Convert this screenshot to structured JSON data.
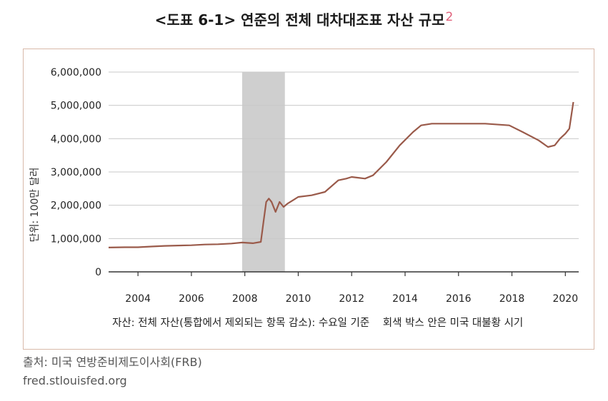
{
  "title": "<도표 6-1> 연준의 전체 대차대조표 자산 규모",
  "title_superscript": "2",
  "chart_data": {
    "type": "line",
    "ylabel": "단위: 100만 달러",
    "yticks": [
      "6,000,000",
      "5,000,000",
      "4,000,000",
      "3,000,000",
      "2,000,000",
      "1,000,000",
      "0"
    ],
    "ytick_values": [
      6000000,
      5000000,
      4000000,
      3000000,
      2000000,
      1000000,
      0
    ],
    "xticks": [
      "2004",
      "2006",
      "2008",
      "2010",
      "2012",
      "2014",
      "2016",
      "2018",
      "2020"
    ],
    "xtick_values": [
      2004,
      2006,
      2008,
      2010,
      2012,
      2014,
      2016,
      2018,
      2020
    ],
    "xlim": [
      2002.9,
      2020.5
    ],
    "ylim": [
      0,
      6000000
    ],
    "grid": "horizontal",
    "shaded_region": [
      2007.9,
      2009.5
    ],
    "line_color": "#9a5a4a",
    "shade_color": "#cfcfcf",
    "series": [
      {
        "values": [
          [
            2002.9,
            730000
          ],
          [
            2003.5,
            740000
          ],
          [
            2004.0,
            740000
          ],
          [
            2004.5,
            760000
          ],
          [
            2005.0,
            780000
          ],
          [
            2005.5,
            790000
          ],
          [
            2006.0,
            800000
          ],
          [
            2006.5,
            820000
          ],
          [
            2007.0,
            830000
          ],
          [
            2007.5,
            850000
          ],
          [
            2007.9,
            880000
          ],
          [
            2008.3,
            860000
          ],
          [
            2008.6,
            900000
          ],
          [
            2008.7,
            1500000
          ],
          [
            2008.8,
            2100000
          ],
          [
            2008.9,
            2200000
          ],
          [
            2009.0,
            2100000
          ],
          [
            2009.15,
            1800000
          ],
          [
            2009.3,
            2100000
          ],
          [
            2009.45,
            1950000
          ],
          [
            2009.6,
            2050000
          ],
          [
            2009.8,
            2150000
          ],
          [
            2010.0,
            2250000
          ],
          [
            2010.5,
            2300000
          ],
          [
            2011.0,
            2400000
          ],
          [
            2011.5,
            2750000
          ],
          [
            2011.8,
            2800000
          ],
          [
            2012.0,
            2850000
          ],
          [
            2012.3,
            2820000
          ],
          [
            2012.5,
            2800000
          ],
          [
            2012.8,
            2900000
          ],
          [
            2013.3,
            3300000
          ],
          [
            2013.8,
            3800000
          ],
          [
            2014.3,
            4200000
          ],
          [
            2014.6,
            4400000
          ],
          [
            2015.0,
            4450000
          ],
          [
            2016.0,
            4450000
          ],
          [
            2017.0,
            4450000
          ],
          [
            2017.9,
            4400000
          ],
          [
            2018.4,
            4200000
          ],
          [
            2019.0,
            3950000
          ],
          [
            2019.35,
            3750000
          ],
          [
            2019.6,
            3800000
          ],
          [
            2019.8,
            4000000
          ],
          [
            2020.0,
            4150000
          ],
          [
            2020.15,
            4300000
          ],
          [
            2020.3,
            5100000
          ]
        ]
      }
    ]
  },
  "note_text": "자산: 전체 자산(통합에서 제외되는 항목 감소): 수요일 기준",
  "note_shade": "회색 박스 안은 미국 대불황 시기",
  "source_label": "출처: 미국 연방준비제도이사회(FRB)",
  "source_url": "fred.stlouisfed.org"
}
